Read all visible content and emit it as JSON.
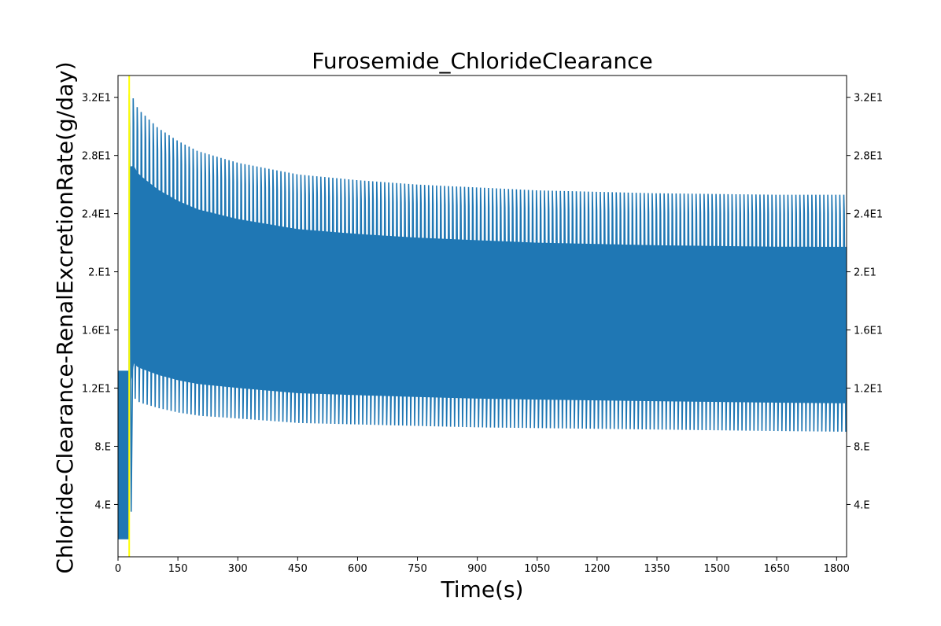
{
  "chart_data": {
    "type": "line",
    "title": "Furosemide_ChlorideClearance",
    "xlabel": "Time(s)",
    "ylabel": "Chloride-Clearance-RenalExcretionRate(g/day)",
    "xlim": [
      0,
      1825
    ],
    "ylim": [
      0.4,
      33.5
    ],
    "x_ticks": [
      0,
      150,
      300,
      450,
      600,
      750,
      900,
      1050,
      1200,
      1350,
      1500,
      1650,
      1800
    ],
    "y_ticks": [
      {
        "value": 4,
        "label": "4.E"
      },
      {
        "value": 8,
        "label": "8.E"
      },
      {
        "value": 12,
        "label": "1.2E1"
      },
      {
        "value": 16,
        "label": "1.6E1"
      },
      {
        "value": 20,
        "label": "2.E1"
      },
      {
        "value": 24,
        "label": "2.4E1"
      },
      {
        "value": 28,
        "label": "2.8E1"
      },
      {
        "value": 32,
        "label": "3.2E1"
      }
    ],
    "y_ticks_mirrored_right": true,
    "grid": false,
    "legend": "none",
    "series": [
      {
        "color": "#1f77b4",
        "pre_event": {
          "x_range": [
            0,
            28
          ],
          "min": 1.6,
          "max": 13.2
        },
        "event_time": 28,
        "envelope": {
          "x": [
            28,
            32,
            50,
            100,
            150,
            200,
            300,
            450,
            600,
            750,
            900,
            1050,
            1200,
            1350,
            1500,
            1650,
            1825
          ],
          "upper": [
            32.2,
            32.3,
            31.2,
            29.9,
            29.0,
            28.3,
            27.5,
            26.7,
            26.3,
            26.0,
            25.8,
            25.6,
            25.5,
            25.4,
            25.35,
            25.3,
            25.3
          ],
          "lower": [
            3.5,
            11.4,
            11.0,
            10.6,
            10.3,
            10.1,
            9.9,
            9.6,
            9.5,
            9.4,
            9.3,
            9.25,
            9.2,
            9.15,
            9.1,
            9.05,
            9.0
          ]
        }
      }
    ],
    "event_marker": {
      "x": 28,
      "color": "#ffff00"
    }
  }
}
